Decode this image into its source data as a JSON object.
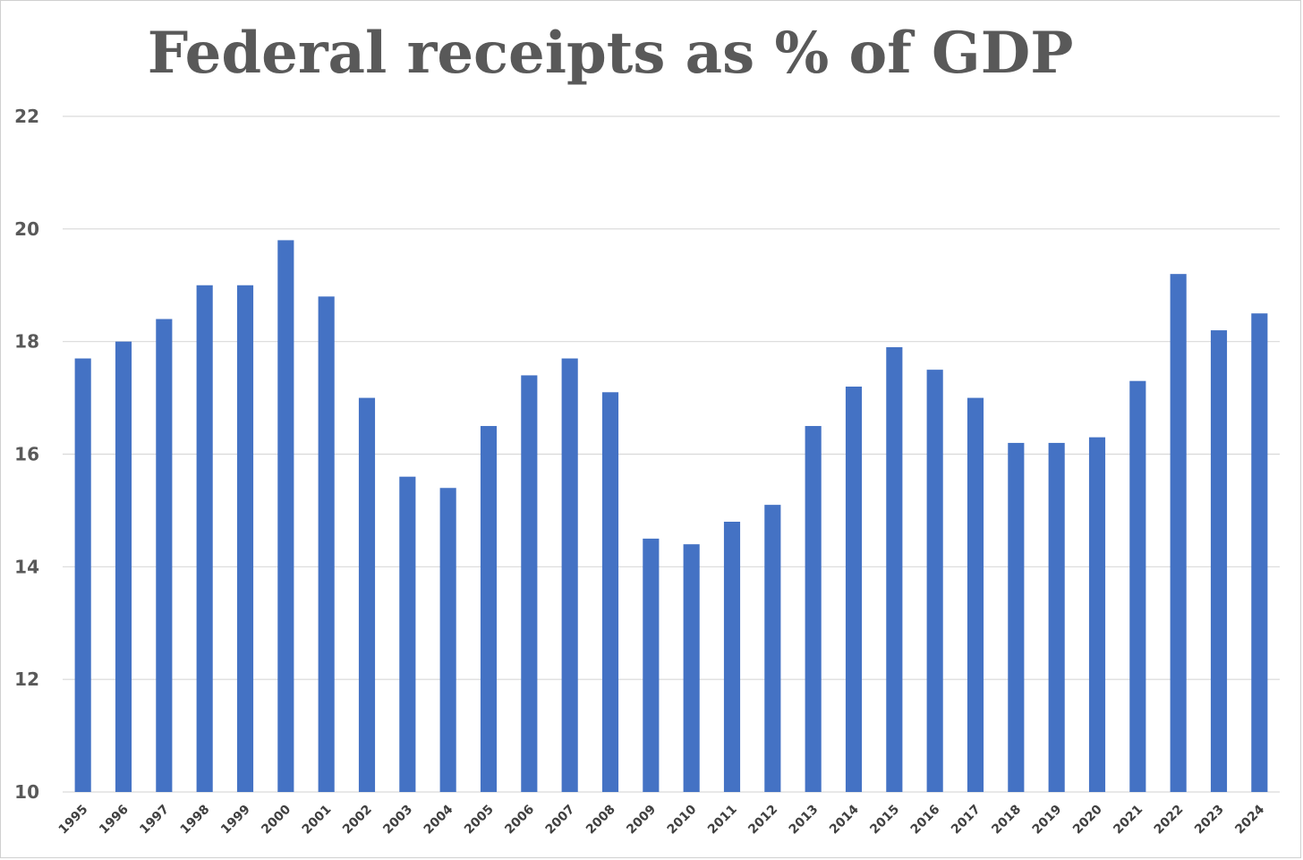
{
  "chart_data": {
    "type": "bar",
    "title": "Federal receipts as % of GDP",
    "xlabel": "",
    "ylabel": "",
    "ylim": [
      10,
      22
    ],
    "yticks": [
      10,
      12,
      14,
      16,
      18,
      20,
      22
    ],
    "grid": true,
    "legend": "none",
    "bar_color": "#4472C4",
    "grid_color": "#d9d9d9",
    "categories": [
      "1995",
      "1996",
      "1997",
      "1998",
      "1999",
      "2000",
      "2001",
      "2002",
      "2003",
      "2004",
      "2005",
      "2006",
      "2007",
      "2008",
      "2009",
      "2010",
      "2011",
      "2012",
      "2013",
      "2014",
      "2015",
      "2016",
      "2017",
      "2018",
      "2019",
      "2020",
      "2021",
      "2022",
      "2023",
      "2024"
    ],
    "values": [
      17.7,
      18.0,
      18.4,
      19.0,
      19.0,
      19.8,
      18.8,
      17.0,
      15.6,
      15.4,
      16.5,
      17.4,
      17.7,
      17.1,
      14.5,
      14.4,
      14.8,
      15.1,
      16.5,
      17.2,
      17.9,
      17.5,
      17.0,
      16.2,
      16.2,
      16.3,
      17.3,
      19.2,
      18.2,
      18.5
    ]
  }
}
